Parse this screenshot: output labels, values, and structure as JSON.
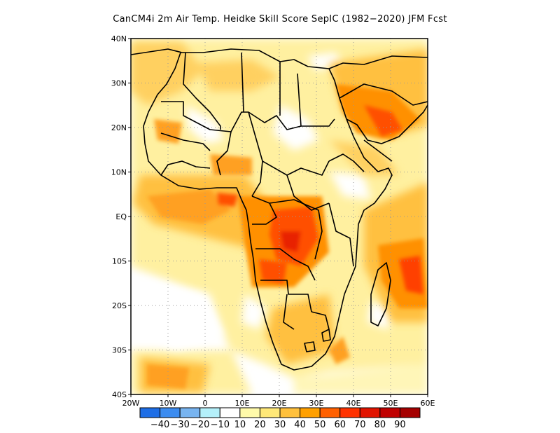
{
  "title": "CanCM4i  2m Air Temp. Heidke Skill Score SepIC (1982−2020) JFM Fcst",
  "map": {
    "lon_range": [
      -20,
      60
    ],
    "lat_range": [
      -40,
      40
    ],
    "lat_ticks": [
      {
        "value": 40,
        "label": "40N"
      },
      {
        "value": 30,
        "label": "30N"
      },
      {
        "value": 20,
        "label": "20N"
      },
      {
        "value": 10,
        "label": "10N"
      },
      {
        "value": 0,
        "label": "EQ"
      },
      {
        "value": -10,
        "label": "10S"
      },
      {
        "value": -20,
        "label": "20S"
      },
      {
        "value": -30,
        "label": "30S"
      },
      {
        "value": -40,
        "label": "40S"
      }
    ],
    "lon_ticks": [
      {
        "value": -20,
        "label": "20W"
      },
      {
        "value": -10,
        "label": "10W"
      },
      {
        "value": 0,
        "label": "0"
      },
      {
        "value": 10,
        "label": "10E"
      },
      {
        "value": 20,
        "label": "20E"
      },
      {
        "value": 30,
        "label": "30E"
      },
      {
        "value": 40,
        "label": "40E"
      },
      {
        "value": 50,
        "label": "50E"
      },
      {
        "value": 60,
        "label": "60E"
      }
    ],
    "grid": "dotted",
    "colorbar": {
      "bins": [
        {
          "color": "#1e6ee6",
          "range": [
            -50,
            -40
          ]
        },
        {
          "color": "#3c8cf0",
          "range": [
            -40,
            -30
          ]
        },
        {
          "color": "#78b4f0",
          "range": [
            -30,
            -20
          ]
        },
        {
          "color": "#b4f0fa",
          "range": [
            -20,
            -10
          ]
        },
        {
          "color": "#ffffff",
          "range": [
            -10,
            10
          ]
        },
        {
          "color": "#fffaaa",
          "range": [
            10,
            20
          ]
        },
        {
          "color": "#ffe878",
          "range": [
            20,
            30
          ]
        },
        {
          "color": "#ffc03c",
          "range": [
            30,
            40
          ]
        },
        {
          "color": "#ffa000",
          "range": [
            40,
            50
          ]
        },
        {
          "color": "#ff6000",
          "range": [
            50,
            60
          ]
        },
        {
          "color": "#ff3200",
          "range": [
            60,
            70
          ]
        },
        {
          "color": "#e11400",
          "range": [
            70,
            80
          ]
        },
        {
          "color": "#c00000",
          "range": [
            80,
            90
          ]
        },
        {
          "color": "#a50000",
          "range": [
            90,
            100
          ]
        }
      ],
      "labels": [
        "−40",
        "−30",
        "−20",
        "−10",
        "10",
        "20",
        "30",
        "40",
        "50",
        "60",
        "70",
        "80",
        "90"
      ]
    }
  }
}
